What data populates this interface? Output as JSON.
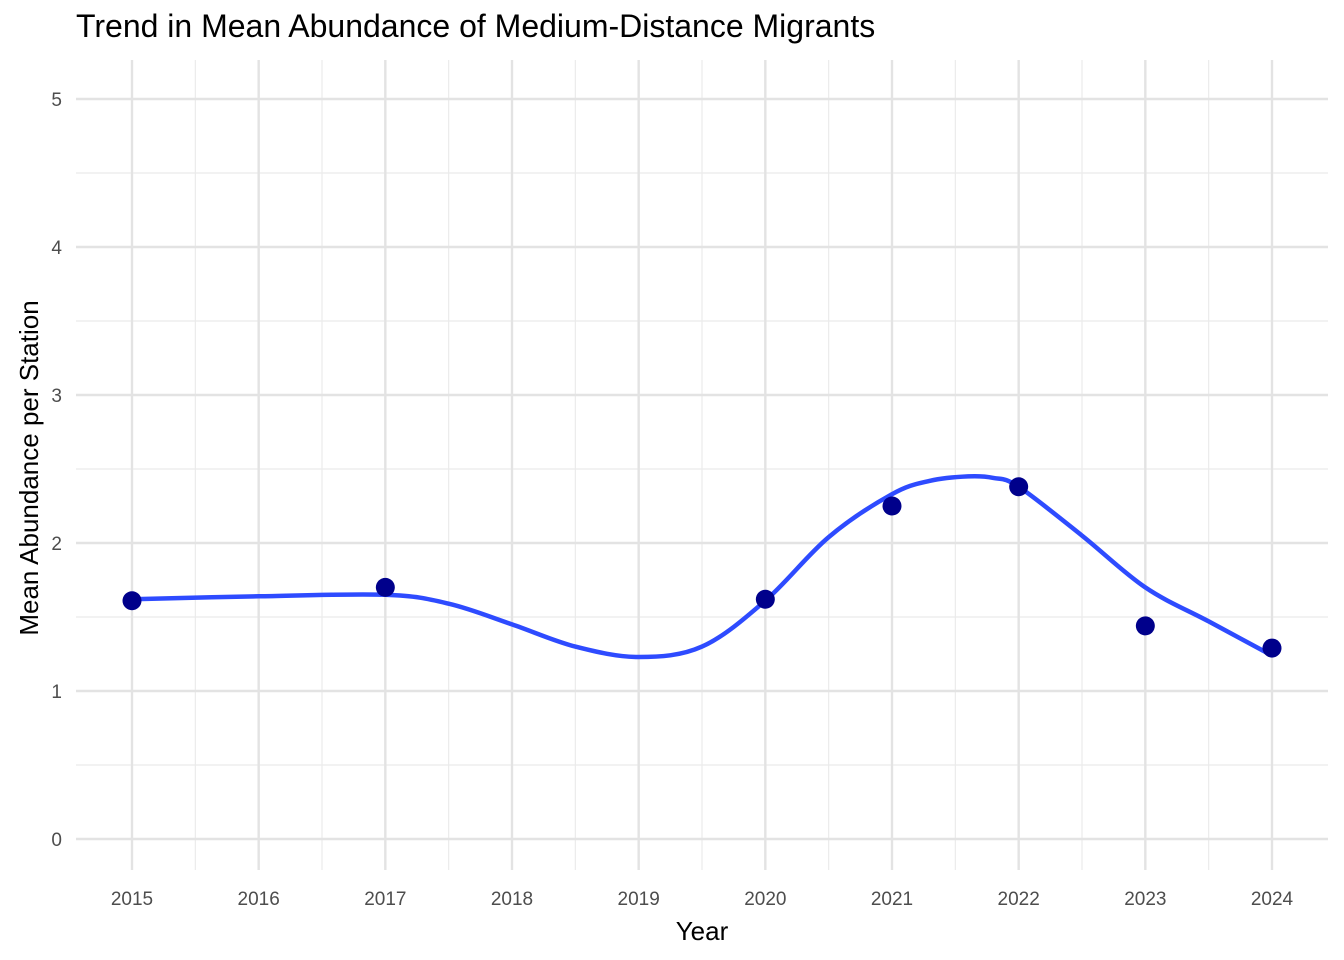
{
  "chart_data": {
    "type": "line",
    "title": "Trend in Mean Abundance of Medium-Distance Migrants",
    "xlabel": "Year",
    "ylabel": "Mean Abundance per Station",
    "x_ticks": [
      2015,
      2016,
      2017,
      2018,
      2019,
      2020,
      2021,
      2022,
      2023,
      2024
    ],
    "y_ticks": [
      0,
      1,
      2,
      3,
      4,
      5
    ],
    "xlim": [
      2014.55,
      2024.45
    ],
    "ylim": [
      -0.2,
      5.25
    ],
    "grid": true,
    "legend": "none",
    "series": [
      {
        "kind": "points",
        "color": "#00008b",
        "x": [
          2015,
          2017,
          2020,
          2021,
          2022,
          2023,
          2024
        ],
        "y": [
          1.61,
          1.7,
          1.62,
          2.25,
          2.38,
          1.44,
          1.29
        ]
      },
      {
        "kind": "smooth",
        "color": "#2e4bff",
        "x": [
          2015,
          2016,
          2017,
          2017.5,
          2018,
          2018.5,
          2019,
          2019.5,
          2020,
          2020.5,
          2021,
          2021.3,
          2021.6,
          2021.8,
          2022,
          2022.5,
          2023,
          2023.5,
          2024
        ],
        "y": [
          1.62,
          1.64,
          1.65,
          1.59,
          1.45,
          1.3,
          1.23,
          1.3,
          1.61,
          2.04,
          2.33,
          2.42,
          2.45,
          2.44,
          2.38,
          2.05,
          1.7,
          1.47,
          1.24
        ]
      }
    ]
  }
}
